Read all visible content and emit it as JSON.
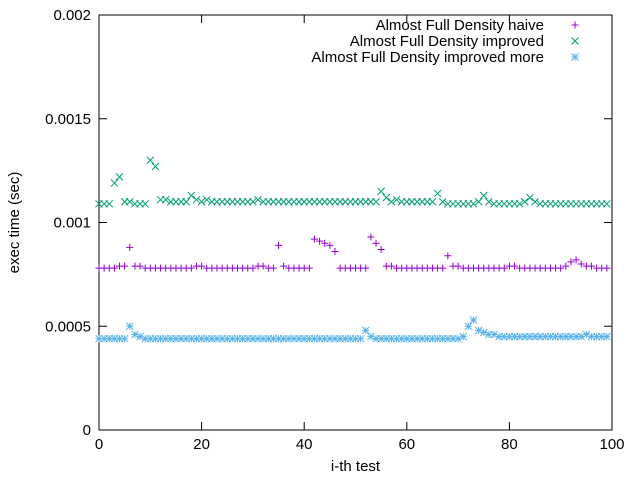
{
  "chart_data": {
    "type": "scatter",
    "title": "",
    "xlabel": "i-th test",
    "ylabel": "exec time (sec)",
    "xlim": [
      0,
      100
    ],
    "ylim": [
      0,
      0.002
    ],
    "xticks": [
      0,
      20,
      40,
      60,
      80,
      100
    ],
    "xtick_labels": [
      "0",
      "20",
      "40",
      "60",
      "80",
      "100"
    ],
    "yticks": [
      0,
      0.0005,
      0.001,
      0.0015,
      0.002
    ],
    "ytick_labels": [
      "0",
      "0.0005",
      "0.001",
      "0.0015",
      "0.002"
    ],
    "grid": false,
    "legend_position": "top-right",
    "series": [
      {
        "name": "Almost Full Density naive",
        "color": "#9400d3",
        "marker": "plus",
        "x": [
          0,
          1,
          2,
          3,
          4,
          5,
          6,
          7,
          8,
          9,
          10,
          11,
          12,
          13,
          14,
          15,
          16,
          17,
          18,
          19,
          20,
          21,
          22,
          23,
          24,
          25,
          26,
          27,
          28,
          29,
          30,
          31,
          32,
          33,
          34,
          35,
          36,
          37,
          38,
          39,
          40,
          41,
          42,
          43,
          44,
          45,
          46,
          47,
          48,
          49,
          50,
          51,
          52,
          53,
          54,
          55,
          56,
          57,
          58,
          59,
          60,
          61,
          62,
          63,
          64,
          65,
          66,
          67,
          68,
          69,
          70,
          71,
          72,
          73,
          74,
          75,
          76,
          77,
          78,
          79,
          80,
          81,
          82,
          83,
          84,
          85,
          86,
          87,
          88,
          89,
          90,
          91,
          92,
          93,
          94,
          95,
          96,
          97,
          98,
          99
        ],
        "y": [
          0.00078,
          0.00078,
          0.00078,
          0.00078,
          0.00079,
          0.00079,
          0.00088,
          0.00079,
          0.00079,
          0.00078,
          0.00078,
          0.00078,
          0.00078,
          0.00078,
          0.00078,
          0.00078,
          0.00078,
          0.00078,
          0.00078,
          0.00079,
          0.00079,
          0.00078,
          0.00078,
          0.00078,
          0.00078,
          0.00078,
          0.00078,
          0.00078,
          0.00078,
          0.00078,
          0.00078,
          0.00079,
          0.00079,
          0.00078,
          0.00078,
          0.00089,
          0.00079,
          0.00078,
          0.00078,
          0.00078,
          0.00078,
          0.00078,
          0.00092,
          0.00091,
          0.0009,
          0.00089,
          0.00086,
          0.00078,
          0.00078,
          0.00078,
          0.00078,
          0.00078,
          0.00078,
          0.00093,
          0.0009,
          0.00087,
          0.00079,
          0.00079,
          0.00078,
          0.00078,
          0.00078,
          0.00078,
          0.00078,
          0.00078,
          0.00078,
          0.00078,
          0.00078,
          0.00078,
          0.00084,
          0.00079,
          0.00079,
          0.00078,
          0.00078,
          0.00078,
          0.00078,
          0.00078,
          0.00078,
          0.00078,
          0.00078,
          0.00078,
          0.00079,
          0.00079,
          0.00078,
          0.00078,
          0.00078,
          0.00078,
          0.00078,
          0.00078,
          0.00078,
          0.00078,
          0.00078,
          0.00079,
          0.00081,
          0.00082,
          0.0008,
          0.00079,
          0.00079,
          0.00078,
          0.00078,
          0.00078
        ]
      },
      {
        "name": "Almost Full Density improved",
        "color": "#009e73",
        "marker": "cross",
        "x": [
          0,
          1,
          2,
          3,
          4,
          5,
          6,
          7,
          8,
          9,
          10,
          11,
          12,
          13,
          14,
          15,
          16,
          17,
          18,
          19,
          20,
          21,
          22,
          23,
          24,
          25,
          26,
          27,
          28,
          29,
          30,
          31,
          32,
          33,
          34,
          35,
          36,
          37,
          38,
          39,
          40,
          41,
          42,
          43,
          44,
          45,
          46,
          47,
          48,
          49,
          50,
          51,
          52,
          53,
          54,
          55,
          56,
          57,
          58,
          59,
          60,
          61,
          62,
          63,
          64,
          65,
          66,
          67,
          68,
          69,
          70,
          71,
          72,
          73,
          74,
          75,
          76,
          77,
          78,
          79,
          80,
          81,
          82,
          83,
          84,
          85,
          86,
          87,
          88,
          89,
          90,
          91,
          92,
          93,
          94,
          95,
          96,
          97,
          98,
          99
        ],
        "y": [
          0.00109,
          0.00109,
          0.00109,
          0.00119,
          0.00122,
          0.0011,
          0.0011,
          0.00109,
          0.00109,
          0.00109,
          0.0013,
          0.00127,
          0.00111,
          0.00111,
          0.0011,
          0.0011,
          0.0011,
          0.0011,
          0.00113,
          0.00111,
          0.0011,
          0.00111,
          0.0011,
          0.0011,
          0.0011,
          0.0011,
          0.0011,
          0.0011,
          0.0011,
          0.0011,
          0.0011,
          0.00111,
          0.0011,
          0.0011,
          0.0011,
          0.0011,
          0.0011,
          0.0011,
          0.0011,
          0.0011,
          0.0011,
          0.0011,
          0.0011,
          0.0011,
          0.0011,
          0.0011,
          0.0011,
          0.0011,
          0.0011,
          0.0011,
          0.0011,
          0.0011,
          0.0011,
          0.0011,
          0.0011,
          0.00115,
          0.00112,
          0.0011,
          0.00111,
          0.0011,
          0.0011,
          0.0011,
          0.0011,
          0.0011,
          0.0011,
          0.0011,
          0.00114,
          0.0011,
          0.00109,
          0.00109,
          0.00109,
          0.00109,
          0.00109,
          0.00109,
          0.0011,
          0.00113,
          0.0011,
          0.00109,
          0.00109,
          0.00109,
          0.00109,
          0.00109,
          0.00109,
          0.0011,
          0.00112,
          0.0011,
          0.00109,
          0.00109,
          0.00109,
          0.00109,
          0.00109,
          0.00109,
          0.00109,
          0.00109,
          0.00109,
          0.00109,
          0.00109,
          0.00109,
          0.00109,
          0.00109
        ]
      },
      {
        "name": "Almost Full Density improved more",
        "color": "#56b4e9",
        "marker": "star",
        "x": [
          0,
          1,
          2,
          3,
          4,
          5,
          6,
          7,
          8,
          9,
          10,
          11,
          12,
          13,
          14,
          15,
          16,
          17,
          18,
          19,
          20,
          21,
          22,
          23,
          24,
          25,
          26,
          27,
          28,
          29,
          30,
          31,
          32,
          33,
          34,
          35,
          36,
          37,
          38,
          39,
          40,
          41,
          42,
          43,
          44,
          45,
          46,
          47,
          48,
          49,
          50,
          51,
          52,
          53,
          54,
          55,
          56,
          57,
          58,
          59,
          60,
          61,
          62,
          63,
          64,
          65,
          66,
          67,
          68,
          69,
          70,
          71,
          72,
          73,
          74,
          75,
          76,
          77,
          78,
          79,
          80,
          81,
          82,
          83,
          84,
          85,
          86,
          87,
          88,
          89,
          90,
          91,
          92,
          93,
          94,
          95,
          96,
          97,
          98,
          99
        ],
        "y": [
          0.00044,
          0.00044,
          0.00044,
          0.00044,
          0.00044,
          0.00044,
          0.0005,
          0.00046,
          0.00045,
          0.00044,
          0.00044,
          0.00044,
          0.00044,
          0.00044,
          0.00044,
          0.00044,
          0.00044,
          0.00044,
          0.00044,
          0.00044,
          0.00044,
          0.00044,
          0.00044,
          0.00044,
          0.00044,
          0.00044,
          0.00044,
          0.00044,
          0.00044,
          0.00044,
          0.00044,
          0.00044,
          0.00044,
          0.00044,
          0.00044,
          0.00044,
          0.00044,
          0.00044,
          0.00044,
          0.00044,
          0.00044,
          0.00044,
          0.00044,
          0.00044,
          0.00044,
          0.00044,
          0.00044,
          0.00044,
          0.00044,
          0.00044,
          0.00044,
          0.00044,
          0.00048,
          0.00045,
          0.00044,
          0.00044,
          0.00044,
          0.00044,
          0.00044,
          0.00044,
          0.00044,
          0.00044,
          0.00044,
          0.00044,
          0.00044,
          0.00044,
          0.00044,
          0.00044,
          0.00044,
          0.00044,
          0.00044,
          0.00045,
          0.0005,
          0.00053,
          0.00048,
          0.00047,
          0.00046,
          0.00046,
          0.00045,
          0.00045,
          0.00045,
          0.00045,
          0.00045,
          0.00045,
          0.00045,
          0.00045,
          0.00045,
          0.00045,
          0.00045,
          0.00045,
          0.00045,
          0.00045,
          0.00045,
          0.00045,
          0.00045,
          0.00046,
          0.00045,
          0.00045,
          0.00045,
          0.00045
        ]
      }
    ]
  }
}
